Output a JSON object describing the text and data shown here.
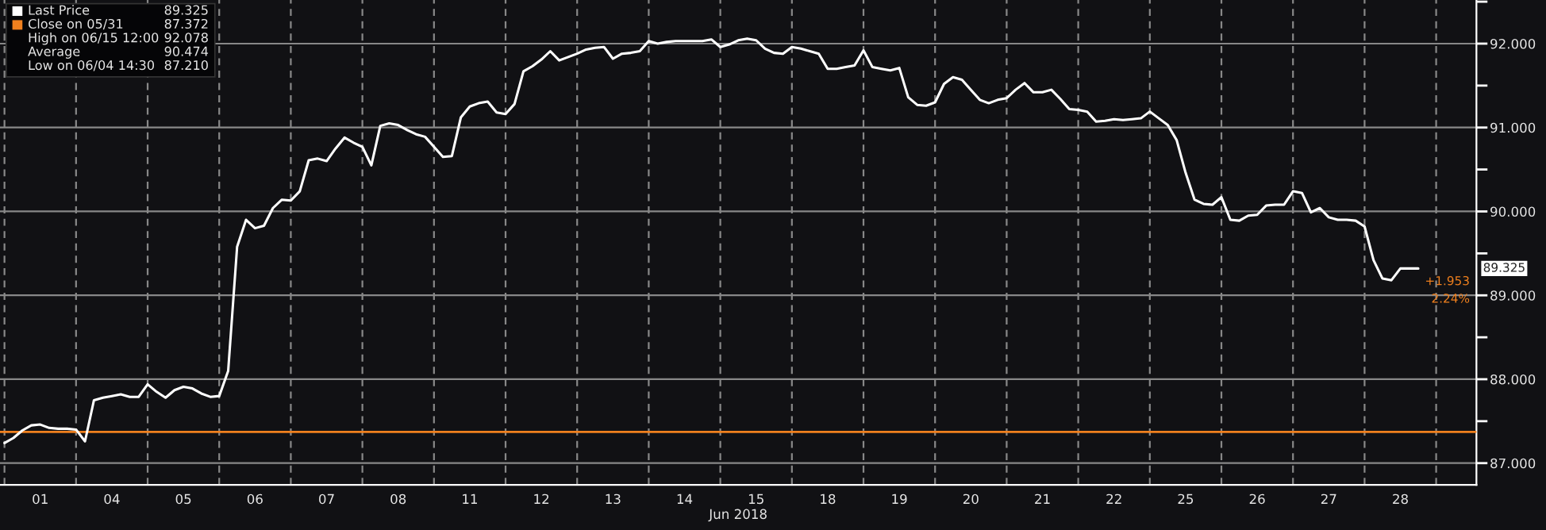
{
  "chart_data": {
    "type": "line",
    "xlabel": "Jun 2018",
    "categories": [
      null,
      null,
      null,
      null,
      "01",
      null,
      null,
      null,
      null,
      null,
      null,
      null,
      "04",
      null,
      null,
      null,
      null,
      null,
      null,
      null,
      "05",
      null,
      null,
      null,
      null,
      null,
      null,
      null,
      "06",
      null,
      null,
      null,
      null,
      null,
      null,
      null,
      "07",
      null,
      null,
      null,
      null,
      null,
      null,
      null,
      "08",
      null,
      null,
      null,
      null,
      null,
      null,
      null,
      "11",
      null,
      null,
      null,
      null,
      null,
      null,
      null,
      "12",
      null,
      null,
      null,
      null,
      null,
      null,
      null,
      "13",
      null,
      null,
      null,
      null,
      null,
      null,
      null,
      "14",
      null,
      null,
      null,
      null,
      null,
      null,
      null,
      "15",
      null,
      null,
      null,
      null,
      null,
      null,
      null,
      "18",
      null,
      null,
      null,
      null,
      null,
      null,
      null,
      "19",
      null,
      null,
      null,
      null,
      null,
      null,
      null,
      "20",
      null,
      null,
      null,
      null,
      null,
      null,
      null,
      "21",
      null,
      null,
      null,
      null,
      null,
      null,
      null,
      "22",
      null,
      null,
      null,
      null,
      null,
      null,
      null,
      "25",
      null,
      null,
      null,
      null,
      null,
      null,
      null,
      "26",
      null,
      null,
      null,
      null,
      null,
      null,
      null,
      "27",
      null,
      null,
      null,
      null,
      null,
      null,
      null,
      "28",
      null,
      null,
      null,
      null,
      null,
      null,
      null,
      null
    ],
    "series": [
      {
        "name": "Last Price",
        "color": "#ffffff",
        "values": [
          87.24,
          87.3,
          87.39,
          87.45,
          87.46,
          87.42,
          87.41,
          87.41,
          87.4,
          87.26,
          87.75,
          87.78,
          87.8,
          87.82,
          87.79,
          87.79,
          87.94,
          87.85,
          87.78,
          87.87,
          87.91,
          87.89,
          87.83,
          87.79,
          87.8,
          88.1,
          89.58,
          89.9,
          89.8,
          89.83,
          90.04,
          90.14,
          90.13,
          90.24,
          90.61,
          90.63,
          90.6,
          90.75,
          90.88,
          90.82,
          90.77,
          90.55,
          91.02,
          91.05,
          91.03,
          90.97,
          90.92,
          90.89,
          90.77,
          90.65,
          90.66,
          91.12,
          91.25,
          91.29,
          91.31,
          91.18,
          91.16,
          91.28,
          91.67,
          91.73,
          91.81,
          91.91,
          91.8,
          91.84,
          91.88,
          91.93,
          91.95,
          91.96,
          91.82,
          91.88,
          91.89,
          91.91,
          92.03,
          92.0,
          92.02,
          92.03,
          92.03,
          92.03,
          92.03,
          92.05,
          91.96,
          91.99,
          92.04,
          92.06,
          92.04,
          91.94,
          91.89,
          91.88,
          91.96,
          91.94,
          91.91,
          91.88,
          91.7,
          91.7,
          91.72,
          91.74,
          91.92,
          91.72,
          91.7,
          91.68,
          91.71,
          91.36,
          91.27,
          91.26,
          91.3,
          91.52,
          91.6,
          91.57,
          91.45,
          91.33,
          91.29,
          91.33,
          91.35,
          91.45,
          91.53,
          91.42,
          91.42,
          91.45,
          91.34,
          91.22,
          91.21,
          91.19,
          91.07,
          91.08,
          91.1,
          91.09,
          91.1,
          91.11,
          91.19,
          91.11,
          91.03,
          90.85,
          90.46,
          90.14,
          90.09,
          90.08,
          90.17,
          89.9,
          89.89,
          89.95,
          89.96,
          90.07,
          90.08,
          90.08,
          90.24,
          90.22,
          89.99,
          90.04,
          89.93,
          89.9,
          89.9,
          89.89,
          89.82,
          89.42,
          89.2,
          89.18,
          89.32,
          89.32,
          89.32,
          null,
          null,
          null,
          null,
          null,
          null
        ]
      }
    ],
    "ylim": [
      86.74,
      92.52
    ],
    "yticks": [
      {
        "value": 87,
        "label": "87.000"
      },
      {
        "value": 87.5,
        "label": null
      },
      {
        "value": 88,
        "label": "88.000"
      },
      {
        "value": 88.5,
        "label": null
      },
      {
        "value": 89,
        "label": "89.000"
      },
      {
        "value": 89.5,
        "label": null
      },
      {
        "value": 90,
        "label": "90.000"
      },
      {
        "value": 90.5,
        "label": null
      },
      {
        "value": 91,
        "label": "91.000"
      },
      {
        "value": 91.5,
        "label": null
      },
      {
        "value": 92,
        "label": "92.000"
      },
      {
        "value": 92.5,
        "label": null
      }
    ],
    "ref_lines": [
      {
        "axis": "y",
        "value": 87.372,
        "label": "Close on 05/31",
        "color": "#f0801e"
      }
    ],
    "annotations": [
      "89.325",
      "87.372",
      "High on 06/15 12:00",
      "92.078",
      "Average",
      "90.474",
      "Low on 06/04 14:30",
      "87.210",
      "+1.953",
      "2.24%",
      "89.325"
    ],
    "grid": true,
    "legend": "top left",
    "line_style": "solid"
  }
}
